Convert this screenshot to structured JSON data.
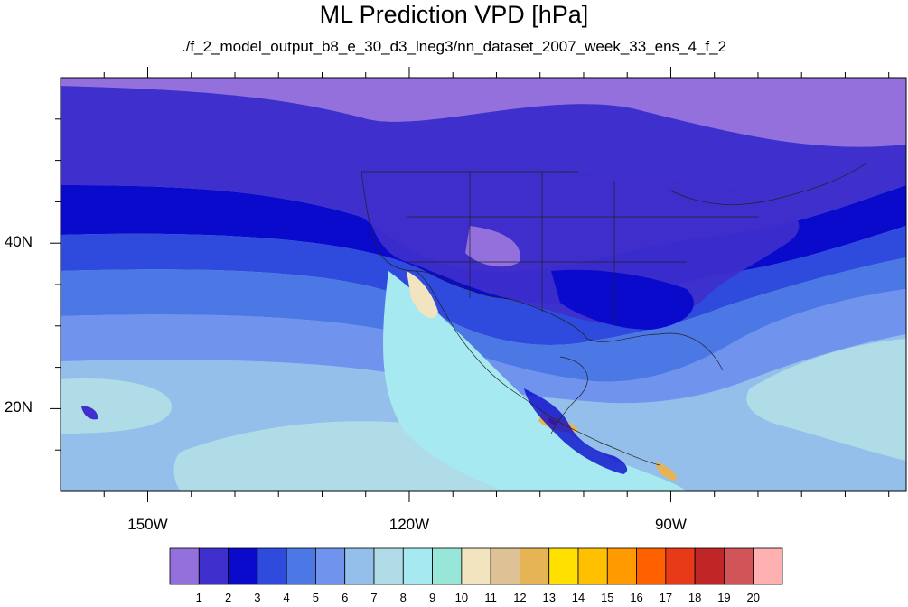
{
  "title": "ML Prediction VPD [hPa]",
  "subtitle": "./f_2_model_output_b8_e_30_d3_lneg3/nn_dataset_2007_week_33_ens_4_f_2",
  "axes": {
    "x_ticks": [
      {
        "label": "150W",
        "lon": -150
      },
      {
        "label": "120W",
        "lon": -120
      },
      {
        "label": "90W",
        "lon": -90
      }
    ],
    "y_ticks": [
      {
        "label": "40N",
        "lat": 40
      },
      {
        "label": "20N",
        "lat": 20
      }
    ],
    "lon_range": [
      -160,
      -63
    ],
    "lat_range": [
      10,
      60
    ]
  },
  "colorbar": {
    "labels": [
      "1",
      "2",
      "3",
      "4",
      "5",
      "6",
      "7",
      "8",
      "9",
      "10",
      "11",
      "12",
      "13",
      "14",
      "15",
      "16",
      "17",
      "18",
      "19",
      "20"
    ],
    "colors": [
      "#9370DB",
      "#3F2FCC",
      "#0A0ACC",
      "#2E4BDD",
      "#4C78E6",
      "#7093EE",
      "#94BFEA",
      "#AFDCE6",
      "#A6E9F0",
      "#98E6D8",
      "#F2E4BE",
      "#DEC194",
      "#E6B455",
      "#FFE000",
      "#FFC000",
      "#FF9A00",
      "#FF6000",
      "#E83A18",
      "#C02626",
      "#D05458",
      "#FFB0B0"
    ]
  }
}
